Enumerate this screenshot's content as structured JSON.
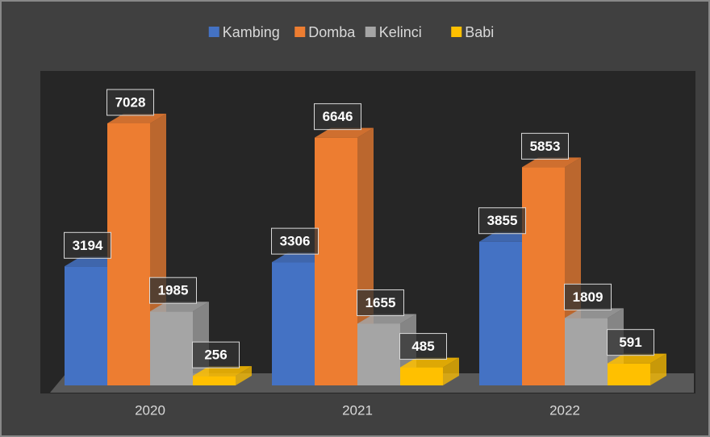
{
  "chart_data": {
    "type": "bar3d",
    "categories": [
      "2020",
      "2021",
      "2022"
    ],
    "series": [
      {
        "name": "Kambing",
        "color": "#4472c4",
        "values": [
          3194,
          3306,
          3855
        ]
      },
      {
        "name": "Domba",
        "color": "#ed7d31",
        "values": [
          7028,
          6646,
          5853
        ]
      },
      {
        "name": "Kelinci",
        "color": "#a5a5a5",
        "values": [
          1985,
          1655,
          1809
        ]
      },
      {
        "name": "Babi",
        "color": "#ffc000",
        "values": [
          256,
          485,
          591
        ]
      }
    ],
    "legend": "top"
  }
}
